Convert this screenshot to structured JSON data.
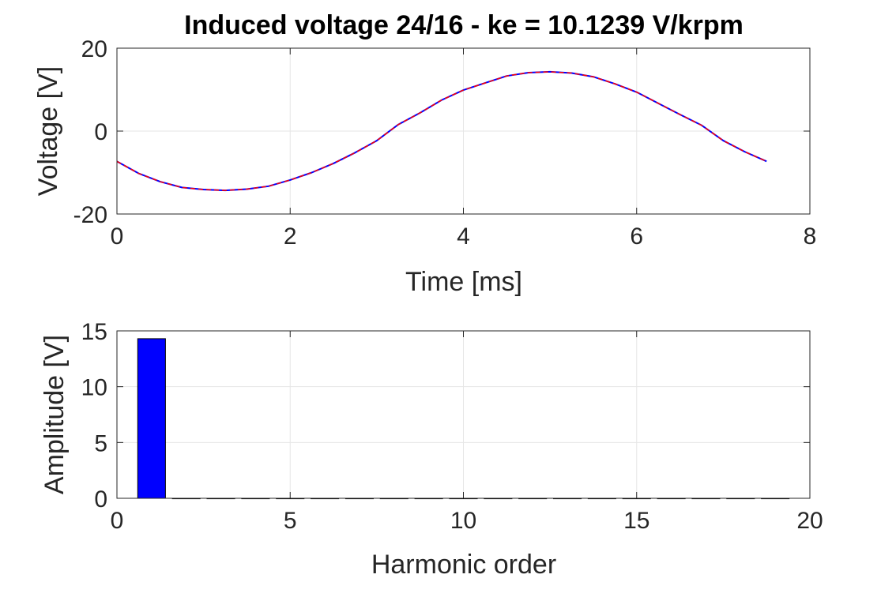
{
  "chart_data": [
    {
      "type": "line",
      "title": "Induced voltage 24/16 - ke = 10.1239 V/krpm",
      "xlabel": "Time [ms]",
      "ylabel": "Voltage [V]",
      "xlim": [
        0,
        8
      ],
      "ylim": [
        -20,
        20
      ],
      "xticks": [
        0,
        2,
        4,
        6,
        8
      ],
      "xtick_labels": [
        "0",
        "2",
        "4",
        "6",
        "8"
      ],
      "yticks": [
        -20,
        0,
        20
      ],
      "ytick_labels": [
        "-20",
        "0",
        "20"
      ],
      "grid": true,
      "series": [
        {
          "color": "#0000ff",
          "dash": "solid",
          "x": [
            0,
            0.25,
            0.5,
            0.75,
            1.0,
            1.25,
            1.5,
            1.75,
            2.0,
            2.25,
            2.5,
            2.75,
            3.0,
            3.25,
            3.5,
            3.75,
            4.0,
            4.25,
            4.5,
            4.75,
            5.0,
            5.25,
            5.5,
            5.75,
            6.0,
            6.25,
            6.5,
            6.75,
            7.0,
            7.25,
            7.5
          ],
          "values": [
            -7.3,
            -10.2,
            -12.2,
            -13.6,
            -14.1,
            -14.3,
            -14.0,
            -13.3,
            -11.8,
            -10.0,
            -7.8,
            -5.2,
            -2.3,
            1.6,
            4.4,
            7.5,
            9.9,
            11.6,
            13.3,
            14.1,
            14.3,
            14.0,
            13.1,
            11.4,
            9.4,
            6.7,
            4.0,
            1.4,
            -2.3,
            -5.0,
            -7.3
          ]
        },
        {
          "color": "#ff0000",
          "dash": "dashed",
          "x": [
            0,
            0.25,
            0.5,
            0.75,
            1.0,
            1.25,
            1.5,
            1.75,
            2.0,
            2.25,
            2.5,
            2.75,
            3.0,
            3.25,
            3.5,
            3.75,
            4.0,
            4.25,
            4.5,
            4.75,
            5.0,
            5.25,
            5.5,
            5.75,
            6.0,
            6.25,
            6.5,
            6.75,
            7.0,
            7.25,
            7.5
          ],
          "values": [
            -7.3,
            -10.2,
            -12.2,
            -13.6,
            -14.1,
            -14.3,
            -14.0,
            -13.3,
            -11.8,
            -10.0,
            -7.8,
            -5.2,
            -2.3,
            1.6,
            4.4,
            7.5,
            9.9,
            11.6,
            13.3,
            14.1,
            14.3,
            14.0,
            13.1,
            11.4,
            9.4,
            6.7,
            4.0,
            1.4,
            -2.3,
            -5.0,
            -7.3
          ]
        }
      ]
    },
    {
      "type": "bar",
      "title": "",
      "xlabel": "Harmonic order",
      "ylabel": "Amplitude [V]",
      "xlim": [
        0,
        20
      ],
      "ylim": [
        0,
        15
      ],
      "xticks": [
        0,
        5,
        10,
        15,
        20
      ],
      "xtick_labels": [
        "0",
        "5",
        "10",
        "15",
        "20"
      ],
      "yticks": [
        0,
        5,
        10,
        15
      ],
      "ytick_labels": [
        "0",
        "5",
        "10",
        "15"
      ],
      "grid": true,
      "bar_width": 0.8,
      "bar_color": "#0000ff",
      "categories": [
        1,
        2,
        3,
        4,
        5,
        6,
        7,
        8,
        9,
        10,
        11,
        12,
        13,
        14,
        15,
        16,
        17,
        18,
        19
      ],
      "values": [
        14.3,
        0,
        0,
        0,
        0,
        0,
        0,
        0,
        0,
        0,
        0,
        0,
        0,
        0,
        0,
        0,
        0,
        0,
        0
      ]
    }
  ]
}
